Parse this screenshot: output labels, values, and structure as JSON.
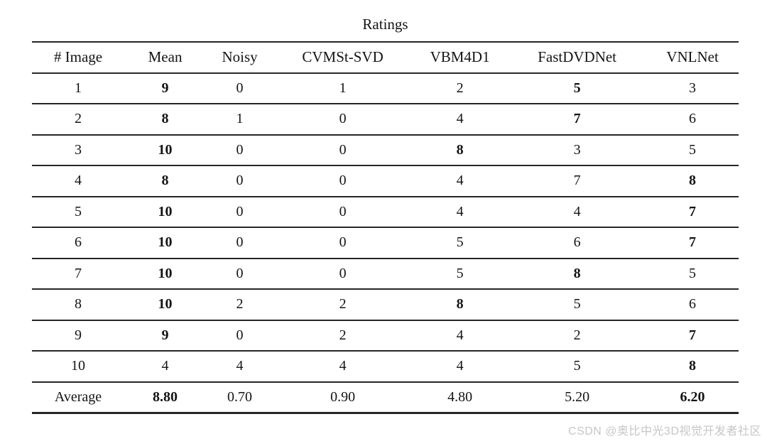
{
  "title": "Ratings",
  "watermark": "CSDN @奥比中光3D视觉开发者社区",
  "colors": {
    "text": "#141414",
    "rule": "#262626",
    "watermark": "#c6c6c6",
    "background": "#ffffff"
  },
  "table": {
    "columns": [
      "# Image",
      "Mean",
      "Noisy",
      "CVMSt-SVD",
      "VBM4D1",
      "FastDVDNet",
      "VNLNet"
    ],
    "rows": [
      {
        "image": "1",
        "values": [
          "9",
          "0",
          "1",
          "2",
          "5",
          "3"
        ],
        "bold": [
          true,
          false,
          false,
          false,
          true,
          false
        ]
      },
      {
        "image": "2",
        "values": [
          "8",
          "1",
          "0",
          "4",
          "7",
          "6"
        ],
        "bold": [
          true,
          false,
          false,
          false,
          true,
          false
        ]
      },
      {
        "image": "3",
        "values": [
          "10",
          "0",
          "0",
          "8",
          "3",
          "5"
        ],
        "bold": [
          true,
          false,
          false,
          true,
          false,
          false
        ]
      },
      {
        "image": "4",
        "values": [
          "8",
          "0",
          "0",
          "4",
          "7",
          "8"
        ],
        "bold": [
          true,
          false,
          false,
          false,
          false,
          true
        ]
      },
      {
        "image": "5",
        "values": [
          "10",
          "0",
          "0",
          "4",
          "4",
          "7"
        ],
        "bold": [
          true,
          false,
          false,
          false,
          false,
          true
        ]
      },
      {
        "image": "6",
        "values": [
          "10",
          "0",
          "0",
          "5",
          "6",
          "7"
        ],
        "bold": [
          true,
          false,
          false,
          false,
          false,
          true
        ]
      },
      {
        "image": "7",
        "values": [
          "10",
          "0",
          "0",
          "5",
          "8",
          "5"
        ],
        "bold": [
          true,
          false,
          false,
          false,
          true,
          false
        ]
      },
      {
        "image": "8",
        "values": [
          "10",
          "2",
          "2",
          "8",
          "5",
          "6"
        ],
        "bold": [
          true,
          false,
          false,
          true,
          false,
          false
        ]
      },
      {
        "image": "9",
        "values": [
          "9",
          "0",
          "2",
          "4",
          "2",
          "7"
        ],
        "bold": [
          true,
          false,
          false,
          false,
          false,
          true
        ]
      },
      {
        "image": "10",
        "values": [
          "4",
          "4",
          "4",
          "4",
          "5",
          "8"
        ],
        "bold": [
          false,
          false,
          false,
          false,
          false,
          true
        ]
      }
    ],
    "average": {
      "image": "Average",
      "values": [
        "8.80",
        "0.70",
        "0.90",
        "4.80",
        "5.20",
        "6.20"
      ],
      "bold": [
        true,
        false,
        false,
        false,
        false,
        true
      ]
    }
  }
}
